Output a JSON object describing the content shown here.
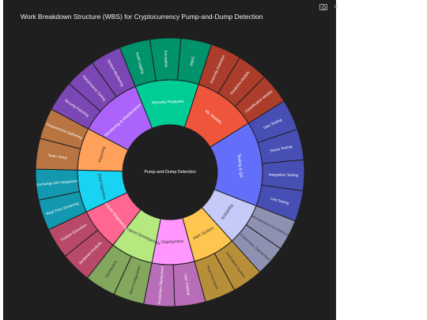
{
  "chart_data": {
    "type": "sunburst",
    "title": "Work Breakdown Structure (WBS) for Cryptocurrency Pump-and-Dump Detection",
    "root": "Pump-and-Dump Detection",
    "children": [
      {
        "name": "Security Features",
        "color": "#00cc96",
        "children": [
          "Audit Logging",
          "Encryption",
          "RBAC"
        ]
      },
      {
        "name": "ML Models",
        "color": "#ef553b",
        "children": [
          "Anomaly Detection",
          "Predictive Models",
          "Classification Models"
        ]
      },
      {
        "name": "Testing & QA",
        "color": "#636efa",
        "children": [
          "User Testing",
          "Stress Testing",
          "Integration Testing",
          "Unit Testing"
        ]
      },
      {
        "name": "Scalability",
        "color": "#c6caf8",
        "children": [
          "Microservices Architecture",
          "Kubernetes Deployment"
        ]
      },
      {
        "name": "Alert System",
        "color": "#ffc64f",
        "children": [
          "Notification System",
          "Real-time Alerts"
        ]
      },
      {
        "name": "Deployment",
        "color": "#ff97ff",
        "children": [
          "User Training",
          "Production Deployment"
        ]
      },
      {
        "name": "Frontend Development",
        "color": "#b6e880",
        "children": [
          "Alert Configuration",
          "Dashboards"
        ]
      },
      {
        "name": "Feature Engineering",
        "color": "#ff6692",
        "children": [
          "Sentiment Analysis",
          "Feature Extraction"
        ]
      },
      {
        "name": "Data Ingestion",
        "color": "#19d3f3",
        "children": [
          "Real-Time Streaming",
          "Exchange API Integration"
        ]
      },
      {
        "name": "Planning",
        "color": "#ffa15a",
        "children": [
          "Team Setup",
          "Requirement Gathering"
        ]
      },
      {
        "name": "Monitoring & Maintenance",
        "color": "#ab63fa",
        "children": [
          "Security Patching",
          "Performance Tuning",
          "System Monitoring"
        ]
      }
    ]
  },
  "modebar": {
    "camera": "camera-icon",
    "logo": "plotly-logo-icon",
    "logo_text": "ılı"
  }
}
